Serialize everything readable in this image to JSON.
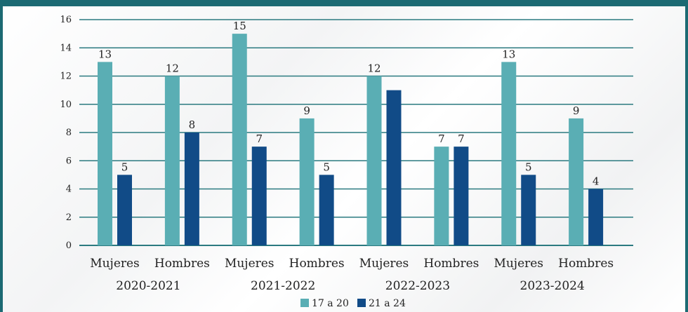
{
  "colors": {
    "series_17_20": "#5aaeb4",
    "series_21_24": "#114b87",
    "frame": "#1c6a73",
    "grid": "#2b7a80"
  },
  "chart_data": {
    "type": "bar",
    "title": "",
    "xlabel": "",
    "ylabel": "",
    "ylim": [
      0,
      16
    ],
    "yticks": [
      0,
      2,
      4,
      6,
      8,
      10,
      12,
      14,
      16
    ],
    "grid": true,
    "legend_position": "bottom",
    "categories": [
      "Mujeres",
      "Hombres",
      "Mujeres",
      "Hombres",
      "Mujeres",
      "Hombres",
      "Mujeres",
      "Hombres"
    ],
    "groups": [
      "2020-2021",
      "2021-2022",
      "2022-2023",
      "2023-2024"
    ],
    "series": [
      {
        "name": "17 a 20",
        "values": [
          13,
          12,
          15,
          9,
          12,
          7,
          13,
          9
        ],
        "labels": [
          "13",
          "12",
          "15",
          "9",
          "12",
          "7",
          "13",
          "9"
        ]
      },
      {
        "name": "21 a 24",
        "values": [
          5,
          8,
          7,
          5,
          11,
          7,
          5,
          4
        ],
        "labels": [
          "5",
          "8",
          "7",
          "5",
          "",
          "7",
          "5",
          "4"
        ]
      }
    ]
  }
}
